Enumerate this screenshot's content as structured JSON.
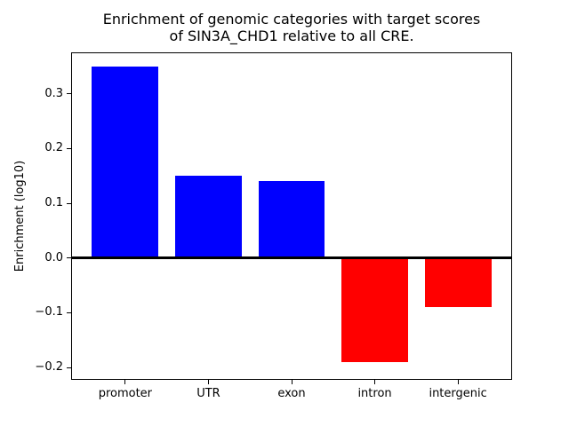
{
  "figure": {
    "title_line1": "Enrichment of genomic categories with target scores",
    "title_line2": "of SIN3A_CHD1 relative to all CRE.",
    "background": "#ffffff"
  },
  "chart_data": {
    "type": "bar",
    "title": "Enrichment of genomic categories with target scores\nof SIN3A_CHD1 relative to all CRE.",
    "xlabel": "",
    "ylabel": "Enrichment (log10)",
    "categories": [
      "promoter",
      "UTR",
      "exon",
      "intron",
      "intergenic"
    ],
    "values": [
      0.35,
      0.15,
      0.14,
      -0.19,
      -0.09
    ],
    "bar_colors": [
      "#0000ff",
      "#0000ff",
      "#0000ff",
      "#ff0000",
      "#ff0000"
    ],
    "positive_color": "#0000ff",
    "negative_color": "#ff0000",
    "bar_width": 0.8,
    "yticks": [
      -0.2,
      -0.1,
      0.0,
      0.1,
      0.2,
      0.3
    ],
    "ytick_labels": [
      "−0.2",
      "−0.1",
      "0.0",
      "0.1",
      "0.2",
      "0.3"
    ],
    "ylim": [
      -0.221,
      0.374
    ],
    "xlim": [
      -0.64,
      4.64
    ],
    "zero_line": true,
    "grid": false,
    "legend_position": "none",
    "axis_color": "#000000",
    "text_color": "#000000",
    "plot_background": "#ffffff"
  }
}
